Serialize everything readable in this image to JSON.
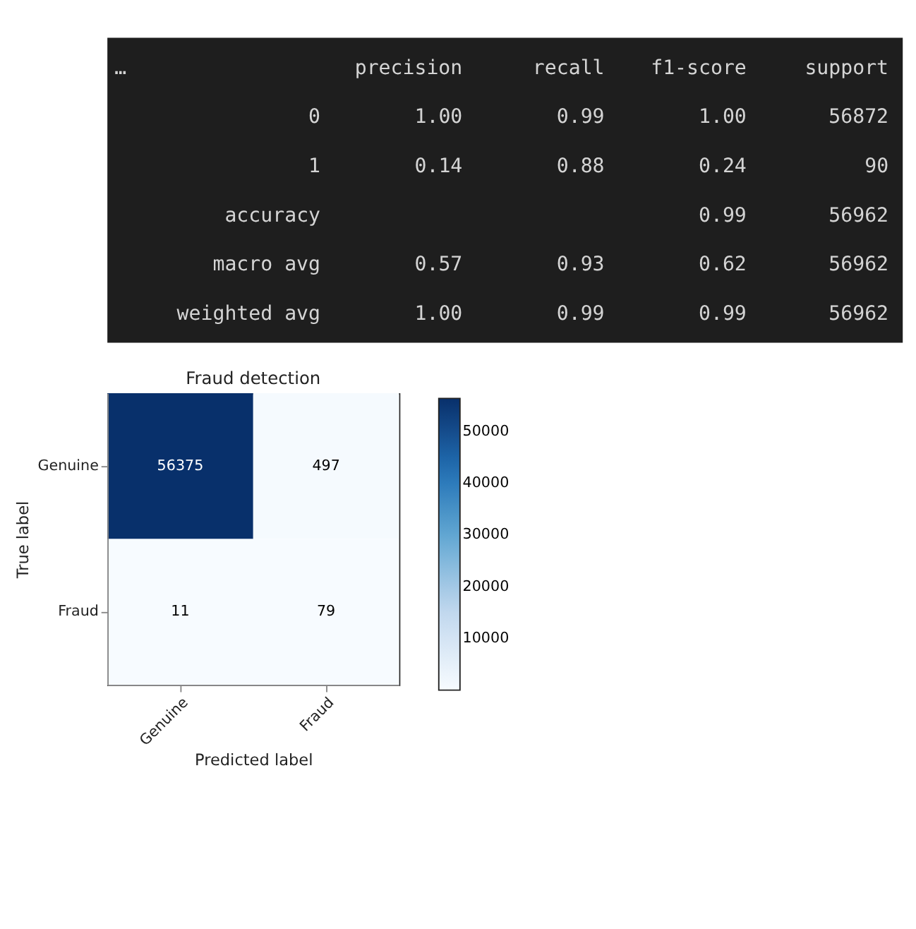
{
  "chart_data": [
    {
      "type": "other",
      "annotations": [
        "…"
      ],
      "categories": [
        "precision",
        "recall",
        "f1-score",
        "support"
      ],
      "y_categories": [
        "0",
        "1",
        "accuracy",
        "macro avg",
        "weighted avg"
      ],
      "cell_labels": [
        [
          "1.00",
          "0.99",
          "1.00",
          "56872"
        ],
        [
          "0.14",
          "0.88",
          "0.24",
          "90"
        ],
        [
          null,
          null,
          "0.99",
          "56962"
        ],
        [
          "0.57",
          "0.93",
          "0.62",
          "56962"
        ],
        [
          "1.00",
          "0.99",
          "0.99",
          "56962"
        ]
      ]
    },
    {
      "type": "heatmap",
      "title": "Fraud detection",
      "xlabel": "Predicted label",
      "ylabel": "True label",
      "categories": [
        "Genuine",
        "Fraud"
      ],
      "y_categories": [
        "Genuine",
        "Fraud"
      ],
      "cells": [
        [
          56375,
          497
        ],
        [
          11,
          79
        ]
      ],
      "clim": [
        11,
        56375
      ],
      "cticks": [
        10000,
        20000,
        30000,
        40000,
        50000
      ],
      "data_labels": true
    }
  ]
}
